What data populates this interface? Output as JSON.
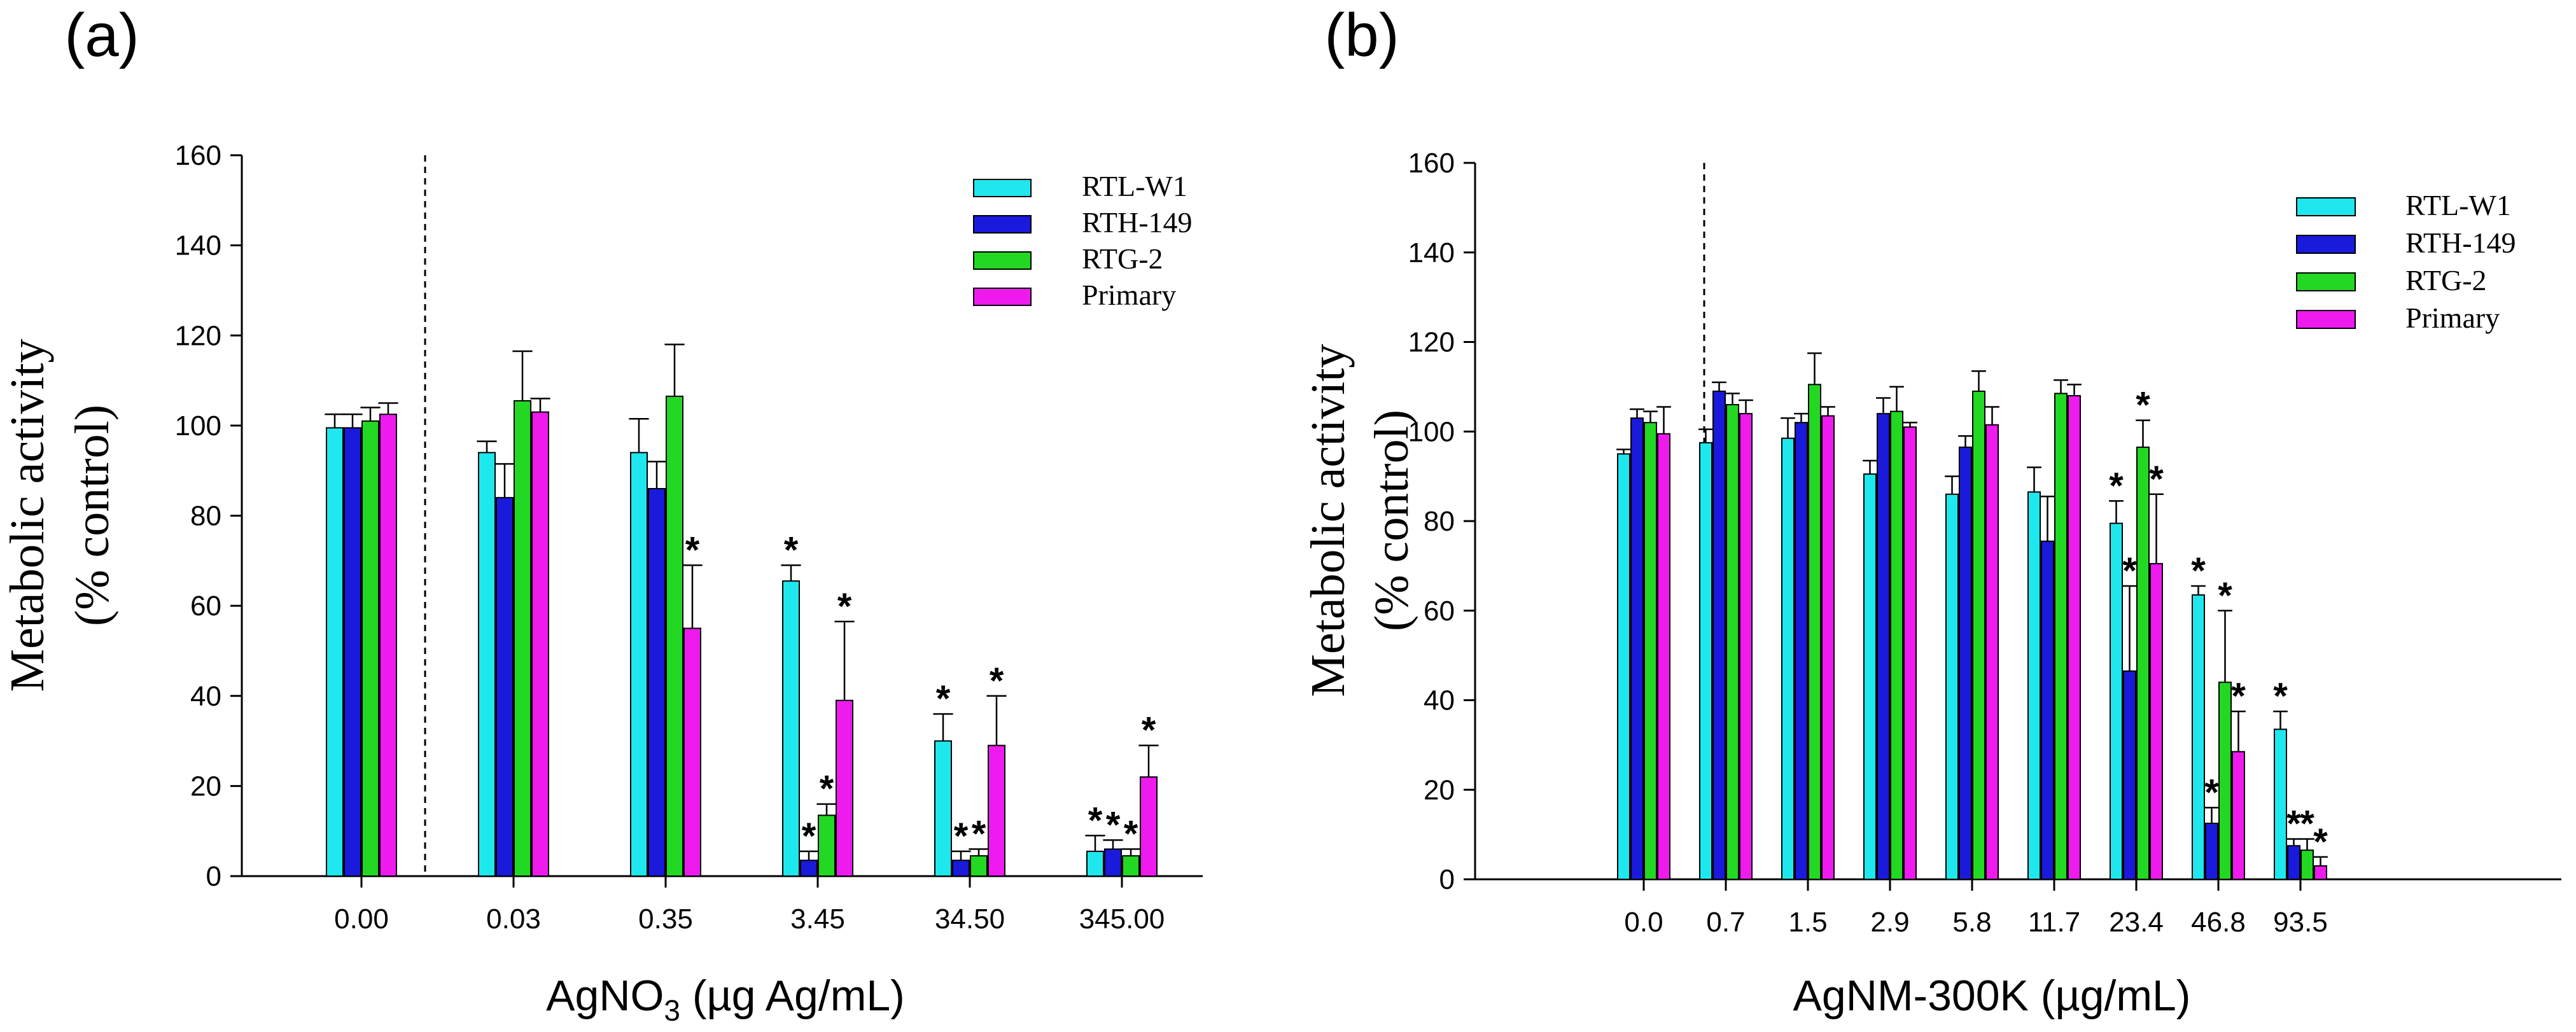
{
  "colors": {
    "RTL-W1": "#1ee8ee",
    "RTH-149": "#1a1adc",
    "RTG-2": "#22d822",
    "Primary": "#ee1aee"
  },
  "chart_data": [
    {
      "type": "bar",
      "panel_label": "(a)",
      "ylabel_line1": "Metabolic activity",
      "ylabel_line2": "(% control)",
      "xlabel_main": "AgNO",
      "xlabel_sub": "3",
      "xlabel_tail": " (µg Ag/mL)",
      "ylim": [
        0,
        160
      ],
      "yticks": [
        "0",
        "20",
        "40",
        "60",
        "80",
        "100",
        "120",
        "140",
        "160"
      ],
      "categories": [
        "0.00",
        "0.03",
        "0.35",
        "3.45",
        "34.50",
        "345.00"
      ],
      "legend_position": "top-right",
      "control_divider_after_index": 0,
      "series": [
        {
          "name": "RTL-W1",
          "values": [
            99.5,
            94,
            94,
            65.5,
            30,
            5.5
          ],
          "errors": [
            3,
            2.5,
            7.5,
            3.5,
            6,
            3.5
          ],
          "significant": [
            false,
            false,
            false,
            true,
            true,
            true
          ]
        },
        {
          "name": "RTH-149",
          "values": [
            99.5,
            84,
            86,
            3.5,
            3.5,
            6
          ],
          "errors": [
            3,
            7.5,
            6,
            2,
            2,
            2
          ],
          "significant": [
            false,
            false,
            false,
            true,
            true,
            true
          ]
        },
        {
          "name": "RTG-2",
          "values": [
            101,
            105.5,
            106.5,
            13.5,
            4.5,
            4.5
          ],
          "errors": [
            3,
            11,
            11.5,
            2.5,
            1.5,
            1.5
          ],
          "significant": [
            false,
            false,
            false,
            true,
            true,
            true
          ]
        },
        {
          "name": "Primary",
          "values": [
            102.5,
            103,
            55,
            39,
            29,
            22
          ],
          "errors": [
            2.5,
            3,
            14,
            17.5,
            11,
            7
          ],
          "significant": [
            false,
            false,
            true,
            true,
            true,
            true
          ]
        }
      ]
    },
    {
      "type": "bar",
      "panel_label": "(b)",
      "ylabel_line1": "Metabolic activity",
      "ylabel_line2": "(% control)",
      "xlabel_main": "AgNM-300K (µg/mL)",
      "xlabel_sub": "",
      "xlabel_tail": "",
      "ylim": [
        0,
        160
      ],
      "yticks": [
        "0",
        "20",
        "40",
        "60",
        "80",
        "100",
        "120",
        "140",
        "160"
      ],
      "categories": [
        "0.0",
        "0.7",
        "1.5",
        "2.9",
        "5.8",
        "11.7",
        "23.4",
        "46.8",
        "93.5"
      ],
      "legend_position": "top-right",
      "control_divider_after_index": 0,
      "series": [
        {
          "name": "RTL-W1",
          "values": [
            95,
            97.5,
            98.5,
            90.5,
            86,
            86.5,
            79.5,
            63.5,
            33.5
          ],
          "errors": [
            1,
            3,
            4.5,
            3,
            4,
            5.5,
            5,
            2,
            4
          ],
          "significant": [
            false,
            false,
            false,
            false,
            false,
            false,
            true,
            true,
            true
          ]
        },
        {
          "name": "RTH-149",
          "values": [
            103,
            109,
            102,
            104,
            96.5,
            75.5,
            46.5,
            12.5,
            7.5
          ],
          "errors": [
            2,
            2,
            2,
            3.5,
            2.5,
            10,
            19,
            3.5,
            1.5
          ],
          "significant": [
            false,
            false,
            false,
            false,
            false,
            false,
            true,
            true,
            true
          ]
        },
        {
          "name": "RTG-2",
          "values": [
            102,
            106,
            110.5,
            104.5,
            109,
            108.5,
            96.5,
            44,
            6.5
          ],
          "errors": [
            2.5,
            2.5,
            7,
            5.5,
            4.5,
            3,
            6,
            16,
            2.5
          ],
          "significant": [
            false,
            false,
            false,
            false,
            false,
            false,
            true,
            true,
            true
          ]
        },
        {
          "name": "Primary",
          "values": [
            99.5,
            104,
            103.5,
            101,
            101.5,
            108,
            70.5,
            28.5,
            3
          ],
          "errors": [
            6,
            3,
            2,
            1,
            4,
            2.5,
            15.5,
            9,
            2
          ],
          "significant": [
            false,
            false,
            false,
            false,
            false,
            false,
            true,
            true,
            true
          ]
        }
      ]
    }
  ]
}
